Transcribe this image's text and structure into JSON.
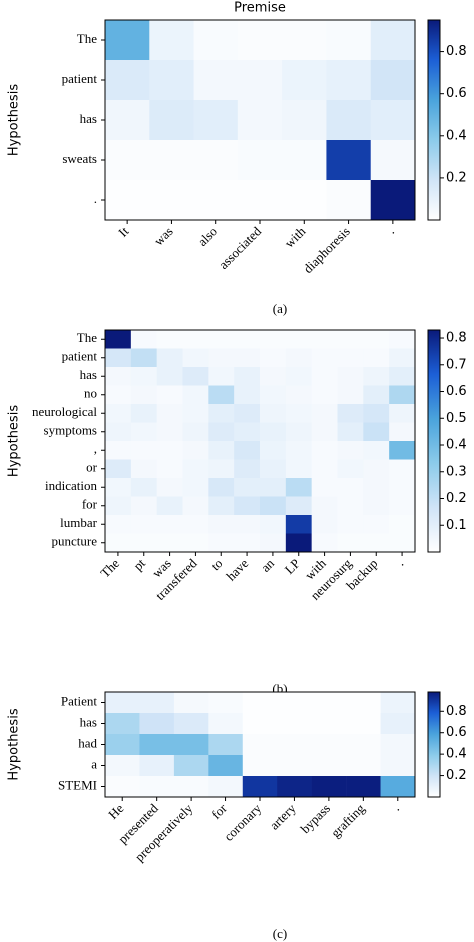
{
  "chart_data": [
    {
      "type": "heatmap",
      "title": "Premise",
      "ylabel": "Hypothesis",
      "caption": "(a)",
      "colormap": "Blues",
      "x_categories": [
        "It",
        "was",
        "also",
        "associated",
        "with",
        "diaphoresis",
        "."
      ],
      "y_categories": [
        "The",
        "patient",
        "has",
        "sweats",
        "."
      ],
      "values": [
        [
          0.5,
          0.08,
          0.03,
          0.02,
          0.02,
          0.03,
          0.12
        ],
        [
          0.15,
          0.12,
          0.05,
          0.05,
          0.08,
          0.1,
          0.18
        ],
        [
          0.06,
          0.14,
          0.12,
          0.05,
          0.06,
          0.15,
          0.12
        ],
        [
          0.02,
          0.02,
          0.02,
          0.03,
          0.03,
          0.85,
          0.04
        ],
        [
          0.01,
          0.01,
          0.01,
          0.01,
          0.01,
          0.02,
          0.95
        ]
      ],
      "clim": [
        0,
        0.95
      ],
      "colorbar_ticks": [
        0.2,
        0.4,
        0.6,
        0.8
      ]
    },
    {
      "type": "heatmap",
      "ylabel": "Hypothesis",
      "caption": "(b)",
      "colormap": "Blues",
      "x_categories": [
        "The",
        "pt",
        "was",
        "transfered",
        "to",
        "have",
        "an",
        "LP",
        "with",
        "neurosurg",
        "backup",
        "."
      ],
      "y_categories": [
        "The",
        "patient",
        "has",
        "no",
        "neurological",
        "symptoms",
        ",",
        "or",
        "indication",
        "for",
        "lumbar",
        "puncture"
      ],
      "values": [
        [
          0.83,
          0.03,
          0.02,
          0.02,
          0.02,
          0.02,
          0.02,
          0.02,
          0.02,
          0.02,
          0.02,
          0.03
        ],
        [
          0.15,
          0.2,
          0.08,
          0.05,
          0.04,
          0.04,
          0.03,
          0.04,
          0.03,
          0.03,
          0.03,
          0.06
        ],
        [
          0.04,
          0.05,
          0.08,
          0.12,
          0.05,
          0.08,
          0.04,
          0.05,
          0.03,
          0.04,
          0.06,
          0.1
        ],
        [
          0.03,
          0.04,
          0.03,
          0.05,
          0.22,
          0.08,
          0.05,
          0.04,
          0.03,
          0.04,
          0.1,
          0.25
        ],
        [
          0.05,
          0.08,
          0.04,
          0.05,
          0.1,
          0.12,
          0.06,
          0.05,
          0.04,
          0.12,
          0.15,
          0.06
        ],
        [
          0.06,
          0.05,
          0.04,
          0.06,
          0.12,
          0.1,
          0.08,
          0.06,
          0.04,
          0.1,
          0.18,
          0.04
        ],
        [
          0.03,
          0.03,
          0.03,
          0.04,
          0.08,
          0.14,
          0.07,
          0.05,
          0.03,
          0.04,
          0.05,
          0.4
        ],
        [
          0.12,
          0.04,
          0.03,
          0.05,
          0.06,
          0.12,
          0.08,
          0.05,
          0.03,
          0.05,
          0.04,
          0.03
        ],
        [
          0.05,
          0.08,
          0.04,
          0.05,
          0.14,
          0.1,
          0.1,
          0.22,
          0.03,
          0.03,
          0.04,
          0.03
        ],
        [
          0.06,
          0.04,
          0.08,
          0.04,
          0.1,
          0.15,
          0.18,
          0.12,
          0.04,
          0.03,
          0.04,
          0.03
        ],
        [
          0.03,
          0.03,
          0.03,
          0.03,
          0.04,
          0.04,
          0.05,
          0.75,
          0.04,
          0.03,
          0.03,
          0.02
        ],
        [
          0.02,
          0.02,
          0.02,
          0.02,
          0.03,
          0.03,
          0.04,
          0.83,
          0.03,
          0.02,
          0.02,
          0.02
        ]
      ],
      "clim": [
        0,
        0.83
      ],
      "colorbar_ticks": [
        0.1,
        0.2,
        0.3,
        0.4,
        0.5,
        0.6,
        0.7,
        0.8
      ]
    },
    {
      "type": "heatmap",
      "ylabel": "Hypothesis",
      "caption": "(c)",
      "colormap": "Blues",
      "x_categories": [
        "He",
        "presented",
        "preoperatively",
        "for",
        "coronary",
        "artery",
        "bypass",
        "grafting",
        "."
      ],
      "y_categories": [
        "Patient",
        "has",
        "had",
        "a",
        "STEMI"
      ],
      "values": [
        [
          0.1,
          0.1,
          0.04,
          0.03,
          0.01,
          0.01,
          0.01,
          0.01,
          0.08
        ],
        [
          0.3,
          0.2,
          0.15,
          0.05,
          0.01,
          0.01,
          0.01,
          0.01,
          0.1
        ],
        [
          0.35,
          0.45,
          0.45,
          0.3,
          0.02,
          0.02,
          0.02,
          0.02,
          0.05
        ],
        [
          0.05,
          0.1,
          0.3,
          0.5,
          0.02,
          0.02,
          0.02,
          0.02,
          0.05
        ],
        [
          0.02,
          0.03,
          0.03,
          0.05,
          0.9,
          0.95,
          0.97,
          0.97,
          0.55
        ]
      ],
      "clim": [
        0,
        0.98
      ],
      "colorbar_ticks": [
        0.2,
        0.4,
        0.6,
        0.8
      ]
    }
  ]
}
